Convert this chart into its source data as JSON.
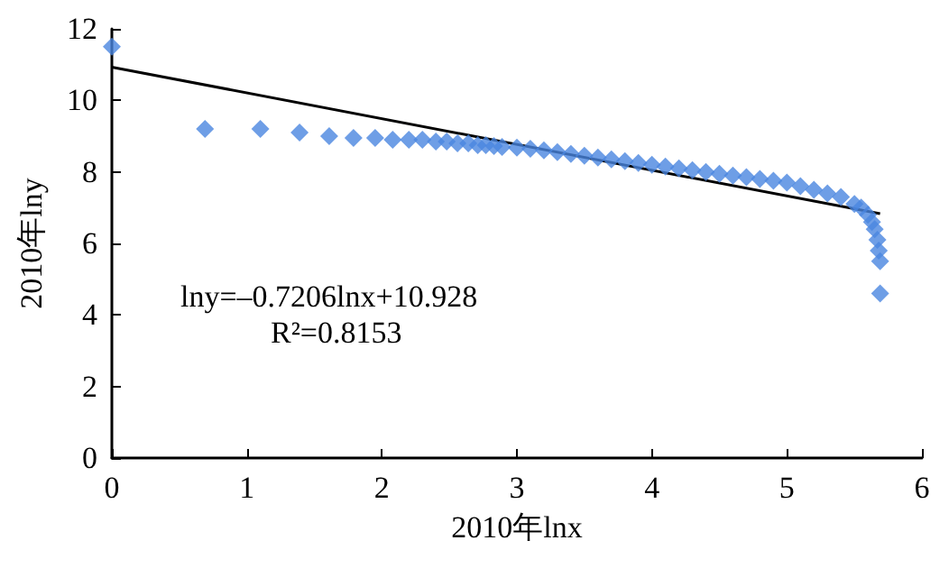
{
  "chart_data": {
    "type": "scatter",
    "xlabel": "2010年lnx",
    "ylabel": "2010年lny",
    "xlim": [
      0,
      6
    ],
    "xticks": [
      0,
      1,
      2,
      3,
      4,
      5,
      6
    ],
    "ylim": [
      0,
      12
    ],
    "yticks": [
      0,
      2,
      4,
      6,
      8,
      10,
      12
    ],
    "grid": false,
    "marker": "diamond",
    "annotations": [
      "lny=–0.7206lnx+10.928",
      "R²=0.8153"
    ],
    "series": [
      {
        "color": "#4a86e0",
        "x": [
          0,
          0.69,
          1.1,
          1.39,
          1.61,
          1.79,
          1.95,
          2.08,
          2.2,
          2.3,
          2.4,
          2.48,
          2.56,
          2.64,
          2.71,
          2.77,
          2.83,
          2.89,
          3.0,
          3.1,
          3.2,
          3.3,
          3.4,
          3.5,
          3.6,
          3.7,
          3.8,
          3.9,
          4.0,
          4.1,
          4.2,
          4.3,
          4.4,
          4.5,
          4.6,
          4.7,
          4.8,
          4.9,
          5.0,
          5.1,
          5.2,
          5.3,
          5.4,
          5.5,
          5.55,
          5.6,
          5.63,
          5.65,
          5.67,
          5.68,
          5.69,
          5.69
        ],
        "values": [
          11.5,
          9.2,
          9.2,
          9.1,
          9.0,
          8.95,
          8.95,
          8.9,
          8.9,
          8.9,
          8.85,
          8.85,
          8.8,
          8.8,
          8.75,
          8.75,
          8.72,
          8.7,
          8.68,
          8.65,
          8.6,
          8.55,
          8.5,
          8.45,
          8.4,
          8.35,
          8.3,
          8.25,
          8.2,
          8.15,
          8.1,
          8.05,
          8.0,
          7.95,
          7.9,
          7.85,
          7.8,
          7.75,
          7.7,
          7.6,
          7.5,
          7.4,
          7.3,
          7.1,
          7.0,
          6.8,
          6.6,
          6.4,
          6.1,
          5.8,
          5.5,
          4.6
        ]
      },
      {
        "type": "line",
        "color": "#000000",
        "marker": "none",
        "x": [
          0,
          5.69
        ],
        "values": [
          10.93,
          6.83
        ]
      }
    ]
  }
}
